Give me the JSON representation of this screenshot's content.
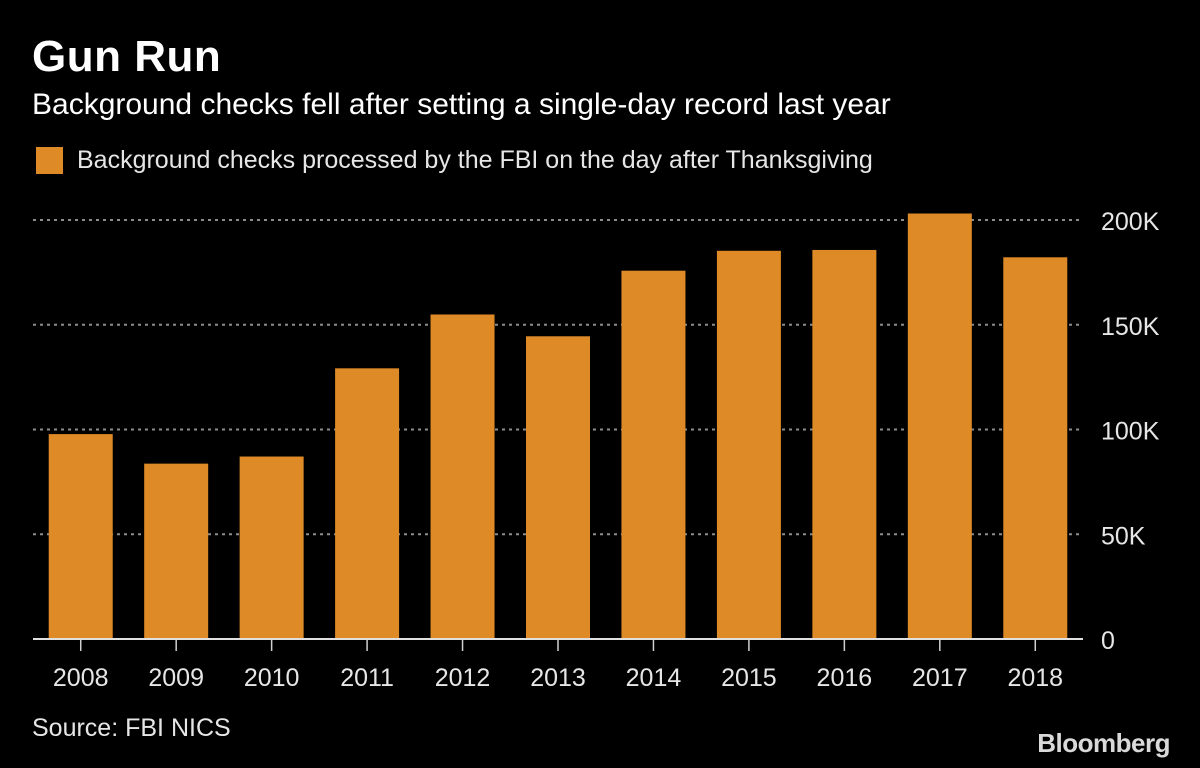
{
  "title": "Gun Run",
  "subtitle": "Background checks fell after setting a single-day record last year",
  "source": "Source: FBI NICS",
  "brand": "Bloomberg",
  "colors": {
    "bar": "#DE8A26",
    "background": "#000000",
    "grid": "#8c8c8c"
  },
  "chart_data": {
    "type": "bar",
    "categories": [
      "2008",
      "2009",
      "2010",
      "2011",
      "2012",
      "2013",
      "2014",
      "2015",
      "2016",
      "2017",
      "2018"
    ],
    "series": [
      {
        "name": "Background checks processed by the FBI on the day after Thanksgiving",
        "values": [
          97800,
          83700,
          87100,
          129200,
          154900,
          144500,
          175800,
          185300,
          185700,
          203100,
          182200
        ]
      }
    ],
    "ylim": [
      0,
      200000
    ],
    "yticks": [
      0,
      50000,
      100000,
      150000,
      200000
    ],
    "ytick_labels": [
      "0",
      "50K",
      "100K",
      "150K",
      "200K"
    ],
    "xlabel": "",
    "ylabel": "",
    "grid": true,
    "y_axis_position": "right",
    "legend": "top-left"
  }
}
